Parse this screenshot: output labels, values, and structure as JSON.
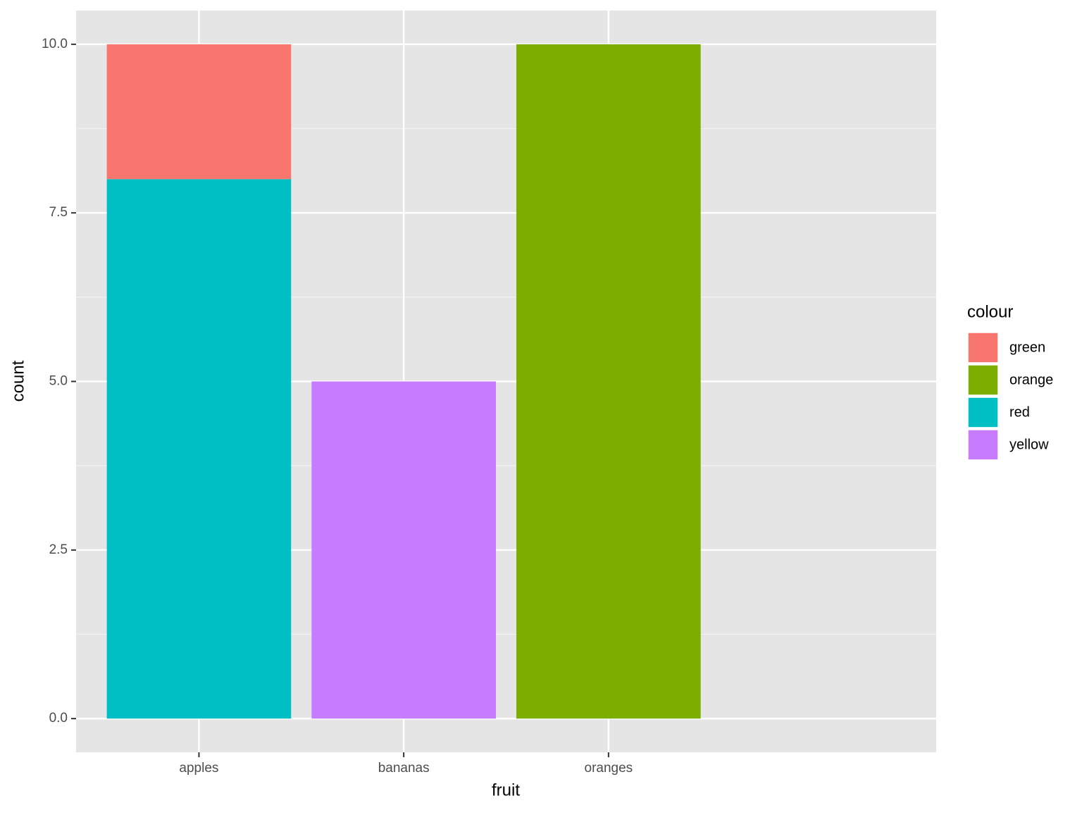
{
  "chart_data": {
    "type": "bar",
    "stacked": true,
    "x_label": "fruit",
    "y_label": "count",
    "legend_title": "colour",
    "legend_position": "right",
    "categories": [
      "apples",
      "bananas",
      "oranges"
    ],
    "series": [
      {
        "name": "green",
        "color": "#f8766d",
        "values": [
          2,
          null,
          null
        ]
      },
      {
        "name": "orange",
        "color": "#7cae00",
        "values": [
          null,
          null,
          10
        ]
      },
      {
        "name": "red",
        "color": "#00bfc4",
        "values": [
          8,
          null,
          null
        ]
      },
      {
        "name": "yellow",
        "color": "#c77cff",
        "values": [
          null,
          5,
          null
        ]
      }
    ],
    "ylim": [
      -0.5,
      10.5
    ],
    "yticks": [
      {
        "value": 0,
        "label": "0.0"
      },
      2.5,
      {
        "value": 5,
        "label": "5.0"
      },
      7.5,
      {
        "value": 10,
        "label": "10.0"
      }
    ],
    "grid": true
  }
}
